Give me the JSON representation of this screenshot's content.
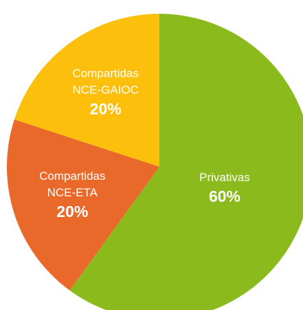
{
  "chart_data": {
    "type": "pie",
    "categories": [
      "Privativas",
      "Compartidas NCE-ETA",
      "Compartidas NCE-GAIOC"
    ],
    "values": [
      60,
      20,
      20
    ],
    "value_labels": [
      "60%",
      "20%",
      "20%"
    ],
    "colors": [
      "#8aba1c",
      "#e8692a",
      "#fbbf0c"
    ]
  }
}
